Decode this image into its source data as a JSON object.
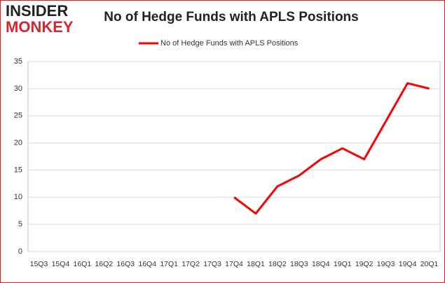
{
  "logo": {
    "line1": "INSIDER",
    "line2": "MONKEY"
  },
  "chart_data": {
    "type": "line",
    "title": "No of Hedge Funds with APLS Positions",
    "categories": [
      "15Q3",
      "15Q4",
      "16Q1",
      "16Q2",
      "16Q3",
      "16Q4",
      "17Q1",
      "17Q2",
      "17Q3",
      "17Q4",
      "18Q1",
      "18Q2",
      "18Q3",
      "18Q4",
      "19Q1",
      "19Q2",
      "19Q3",
      "19Q4",
      "20Q1"
    ],
    "series": [
      {
        "name": "No of Hedge Funds with APLS Positions",
        "color": "#ff0000",
        "values": [
          null,
          null,
          null,
          null,
          null,
          null,
          null,
          null,
          null,
          10,
          7,
          12,
          14,
          17,
          19,
          17,
          24,
          31,
          30
        ]
      }
    ],
    "ylim": [
      0,
      35
    ],
    "yticks": [
      0,
      5,
      10,
      15,
      20,
      25,
      30,
      35
    ],
    "grid": true,
    "legend": "top"
  }
}
